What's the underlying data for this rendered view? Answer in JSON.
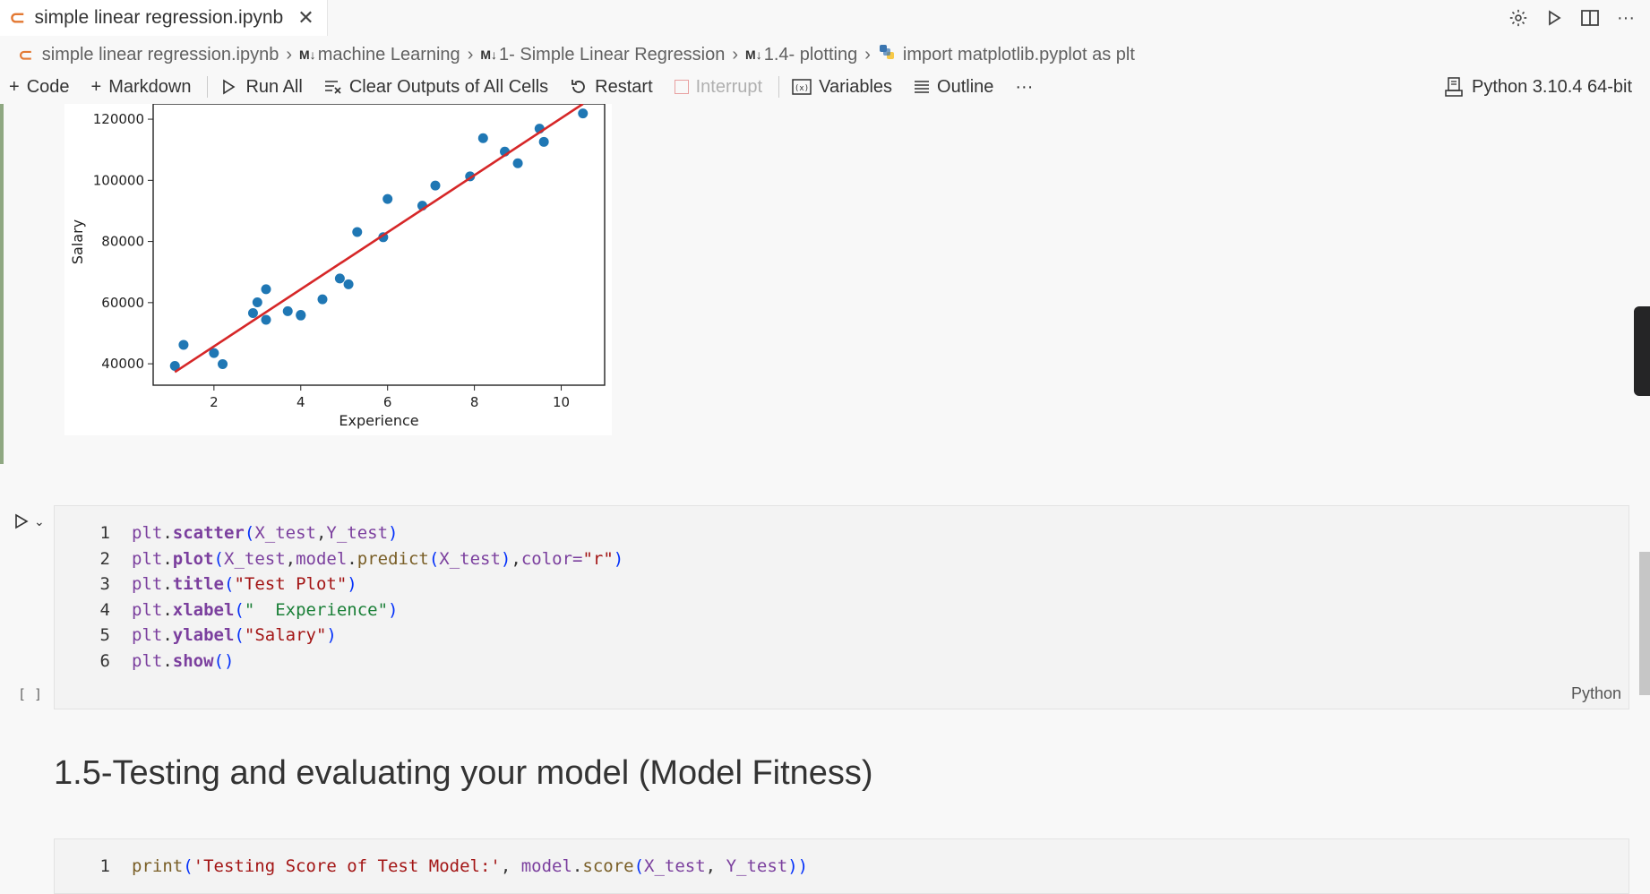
{
  "tab": {
    "title": "simple linear regression.ipynb"
  },
  "breadcrumb": {
    "items": [
      "simple linear regression.ipynb",
      "machine Learning",
      "1- Simple Linear Regression",
      "1.4- plotting",
      "import matplotlib.pyplot as plt"
    ],
    "md_marker": "M↓"
  },
  "toolbar": {
    "code": "Code",
    "markdown": "Markdown",
    "run_all": "Run All",
    "clear_outputs": "Clear Outputs of All Cells",
    "restart": "Restart",
    "interrupt": "Interrupt",
    "variables": "Variables",
    "outline": "Outline",
    "more": "···"
  },
  "kernel": {
    "label": "Python 3.10.4 64-bit"
  },
  "chart_data": {
    "type": "scatter",
    "xlabel": "Experience",
    "ylabel": "Salary",
    "xlim": [
      0.6,
      11
    ],
    "ylim": [
      33000,
      125000
    ],
    "xticks": [
      2,
      4,
      6,
      8,
      10
    ],
    "yticks": [
      40000,
      60000,
      80000,
      100000,
      120000
    ],
    "ytick_labels": [
      "40000",
      "60000",
      "80000",
      "100000",
      "120000"
    ],
    "xtick_labels": [
      "2",
      "4",
      "6",
      "8",
      "10"
    ],
    "points": [
      [
        1.1,
        39300
      ],
      [
        1.3,
        46200
      ],
      [
        2.0,
        43500
      ],
      [
        2.2,
        39900
      ],
      [
        2.9,
        56600
      ],
      [
        3.0,
        60100
      ],
      [
        3.2,
        54400
      ],
      [
        3.2,
        64400
      ],
      [
        3.7,
        57200
      ],
      [
        4.0,
        56000
      ],
      [
        4.0,
        55800
      ],
      [
        4.5,
        61100
      ],
      [
        4.9,
        67900
      ],
      [
        5.1,
        66000
      ],
      [
        5.3,
        83100
      ],
      [
        5.9,
        81400
      ],
      [
        6.0,
        93900
      ],
      [
        6.8,
        91700
      ],
      [
        7.1,
        98300
      ],
      [
        7.9,
        101300
      ],
      [
        8.2,
        113800
      ],
      [
        8.7,
        109400
      ],
      [
        9.0,
        105600
      ],
      [
        9.5,
        116900
      ],
      [
        9.6,
        112600
      ],
      [
        10.5,
        121900
      ]
    ],
    "fit_line": {
      "x": [
        1.1,
        10.5
      ],
      "y": [
        37300,
        125000
      ],
      "color": "#d62728"
    },
    "point_color": "#1f77b4"
  },
  "cell": {
    "lines": [
      {
        "n": "1",
        "segs": [
          [
            "plt",
            "obj"
          ],
          [
            ".",
            ""
          ],
          [
            "scatter",
            "kw"
          ],
          [
            "(",
            "p"
          ],
          [
            "X_test",
            "obj"
          ],
          [
            ",",
            ""
          ],
          [
            "Y_test",
            "obj"
          ],
          [
            ")",
            "p"
          ]
        ]
      },
      {
        "n": "2",
        "segs": [
          [
            "plt",
            "obj"
          ],
          [
            ".",
            ""
          ],
          [
            "plot",
            "kw"
          ],
          [
            "(",
            "p"
          ],
          [
            "X_test",
            "obj"
          ],
          [
            ",",
            ""
          ],
          [
            "model",
            "obj"
          ],
          [
            ".",
            ""
          ],
          [
            "predict",
            "fn"
          ],
          [
            "(",
            "p"
          ],
          [
            "X_test",
            "obj"
          ],
          [
            ")",
            "p"
          ],
          [
            ",",
            ""
          ],
          [
            "color=",
            "obj"
          ],
          [
            "\"r\"",
            "str"
          ],
          [
            ")",
            "p"
          ]
        ]
      },
      {
        "n": "3",
        "segs": [
          [
            "plt",
            "obj"
          ],
          [
            ".",
            ""
          ],
          [
            "title",
            "kw"
          ],
          [
            "(",
            "p"
          ],
          [
            "\"Test Plot\"",
            "str"
          ],
          [
            ")",
            "p"
          ]
        ]
      },
      {
        "n": "4",
        "segs": [
          [
            "plt",
            "obj"
          ],
          [
            ".",
            ""
          ],
          [
            "xlabel",
            "kw"
          ],
          [
            "(",
            "p"
          ],
          [
            "\"  Experience\"",
            "str2"
          ],
          [
            ")",
            "p"
          ]
        ]
      },
      {
        "n": "5",
        "segs": [
          [
            "plt",
            "obj"
          ],
          [
            ".",
            ""
          ],
          [
            "ylabel",
            "kw"
          ],
          [
            "(",
            "p"
          ],
          [
            "\"Salary\"",
            "str"
          ],
          [
            ")",
            "p"
          ]
        ]
      },
      {
        "n": "6",
        "segs": [
          [
            "plt",
            "obj"
          ],
          [
            ".",
            ""
          ],
          [
            "show",
            "kw"
          ],
          [
            "()",
            "p"
          ]
        ]
      }
    ],
    "language": "Python",
    "exec_count": "[ ]"
  },
  "heading": {
    "text": "1.5-Testing and evaluating your model (Model Fitness)"
  },
  "cell2": {
    "lines": [
      {
        "n": "1",
        "segs": [
          [
            "print",
            "fn"
          ],
          [
            "(",
            "p"
          ],
          [
            "'Testing Score of Test Model:'",
            "str"
          ],
          [
            ", ",
            ""
          ],
          [
            "model",
            "obj"
          ],
          [
            ".",
            ""
          ],
          [
            "score",
            "fn"
          ],
          [
            "(",
            "p"
          ],
          [
            "X_test",
            "obj"
          ],
          [
            ", ",
            ""
          ],
          [
            "Y_test",
            "obj"
          ],
          [
            "))",
            "p"
          ]
        ]
      }
    ]
  }
}
